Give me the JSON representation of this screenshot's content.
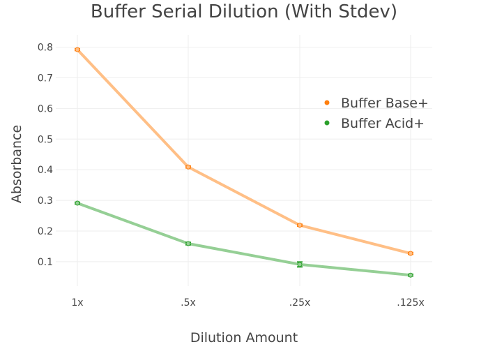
{
  "chart_data": {
    "type": "line",
    "title": "Buffer Serial Dilution (With Stdev)",
    "xlabel": "Dilution Amount",
    "ylabel": "Absorbance",
    "categories": [
      "1x",
      ".5x",
      ".25x",
      ".125x"
    ],
    "ylim": [
      0.02,
      0.84
    ],
    "yticks": [
      0.1,
      0.2,
      0.3,
      0.4,
      0.5,
      0.6,
      0.7,
      0.8
    ],
    "ytick_labels": [
      "0.1",
      "0.2",
      "0.3",
      "0.4",
      "0.5",
      "0.6",
      "0.7",
      "0.8"
    ],
    "grid": true,
    "legend_position": "top-right",
    "series": [
      {
        "name": "Buffer Base+",
        "marker_color": "#ff7f0e",
        "line_color": "#ffbf86",
        "values": [
          0.792,
          0.409,
          0.219,
          0.127
        ],
        "error": [
          0.003,
          0.003,
          0.003,
          0.003
        ]
      },
      {
        "name": "Buffer Acid+",
        "marker_color": "#2ca02c",
        "line_color": "#95cf95",
        "values": [
          0.291,
          0.159,
          0.091,
          0.056
        ],
        "error": [
          0.003,
          0.004,
          0.008,
          0.003
        ]
      }
    ]
  }
}
